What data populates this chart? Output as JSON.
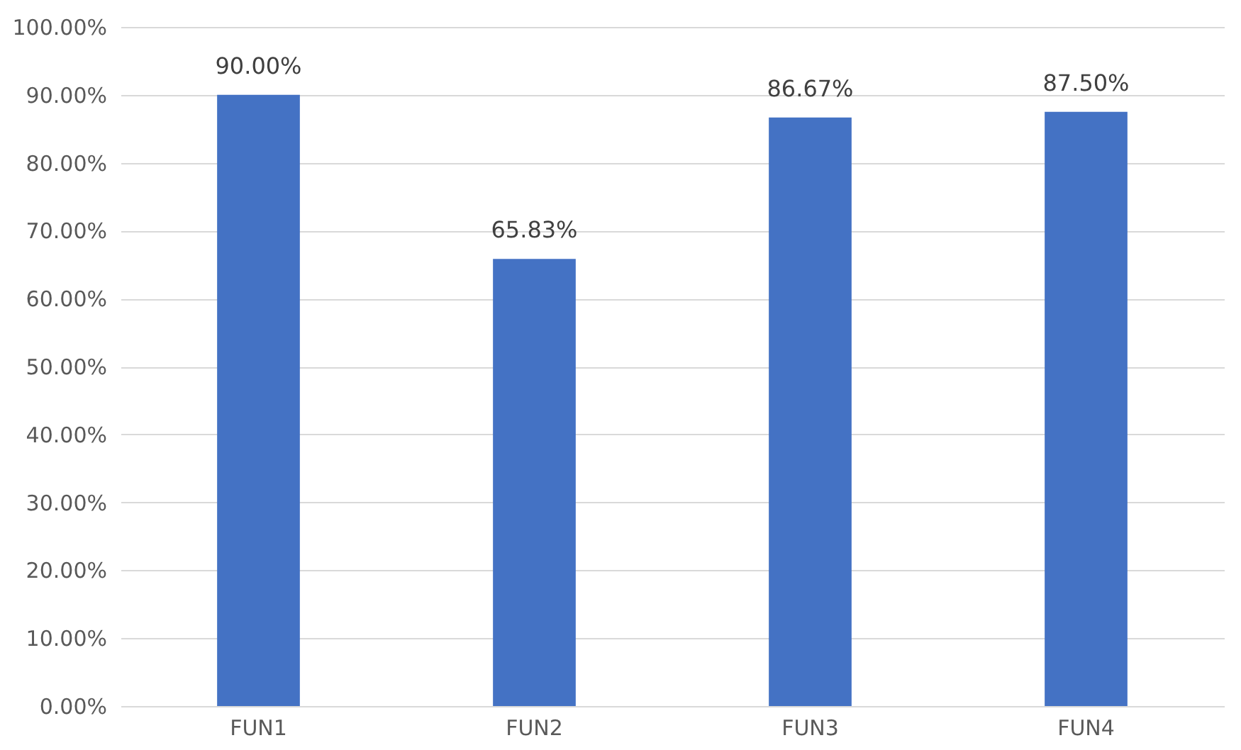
{
  "chart_data": {
    "type": "bar",
    "categories": [
      "FUN1",
      "FUN2",
      "FUN3",
      "FUN4"
    ],
    "values": [
      90.0,
      65.83,
      86.67,
      87.5
    ],
    "value_labels": [
      "90.00%",
      "65.83%",
      "86.67%",
      "87.50%"
    ],
    "color": "#4472c4",
    "ylim": [
      0,
      100
    ],
    "yticks": [
      {
        "value": 0,
        "label": "0.00%"
      },
      {
        "value": 10,
        "label": "10.00%"
      },
      {
        "value": 20,
        "label": "20.00%"
      },
      {
        "value": 30,
        "label": "30.00%"
      },
      {
        "value": 40,
        "label": "40.00%"
      },
      {
        "value": 50,
        "label": "50.00%"
      },
      {
        "value": 60,
        "label": "60.00%"
      },
      {
        "value": 70,
        "label": "70.00%"
      },
      {
        "value": 80,
        "label": "80.00%"
      },
      {
        "value": 90,
        "label": "90.00%"
      },
      {
        "value": 100,
        "label": "100.00%"
      }
    ],
    "grid": "y"
  }
}
